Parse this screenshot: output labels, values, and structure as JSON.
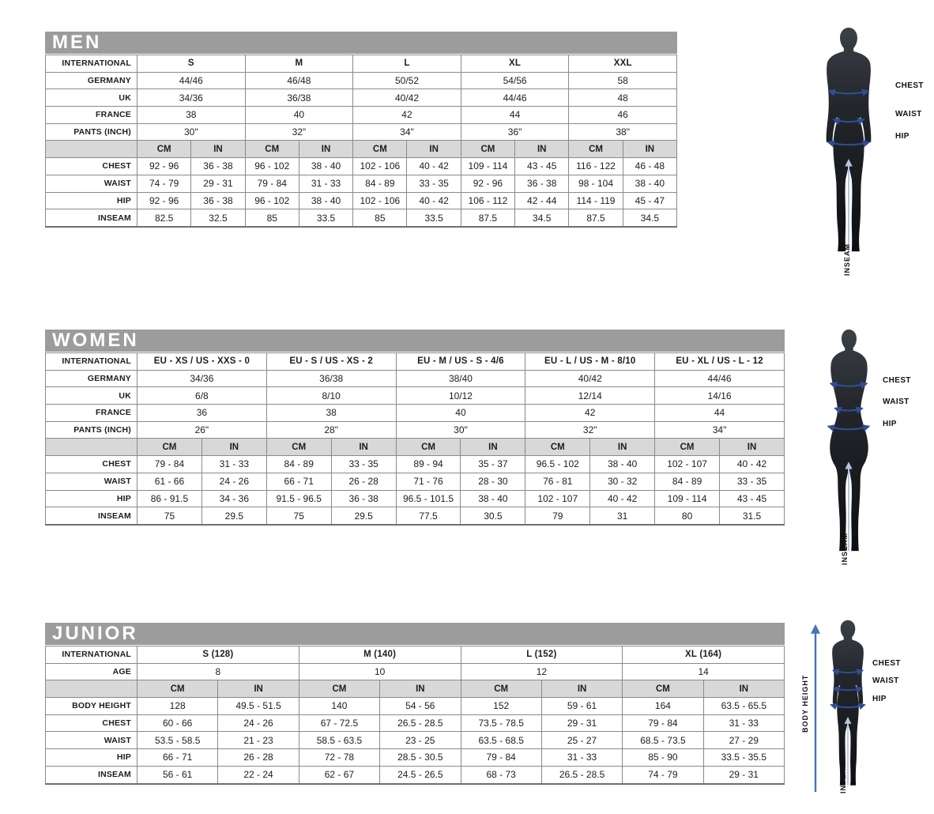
{
  "colors": {
    "header_bar": "#9c9c9c",
    "unit_row": "#d8d8d8",
    "measure_arrow": "#2e4f96",
    "inseam_line": "#b3c4e4",
    "body_height_arrow": "#4a72b8"
  },
  "men": {
    "title": "MEN",
    "table": {
      "label_col_width": 116,
      "info_rows": [
        {
          "label": "INTERNATIONAL",
          "values": [
            "S",
            "M",
            "L",
            "XL",
            "XXL"
          ]
        },
        {
          "label": "GERMANY",
          "values": [
            "44/46",
            "46/48",
            "50/52",
            "54/56",
            "58"
          ]
        },
        {
          "label": "UK",
          "values": [
            "34/36",
            "36/38",
            "40/42",
            "44/46",
            "48"
          ]
        },
        {
          "label": "FRANCE",
          "values": [
            "38",
            "40",
            "42",
            "44",
            "46"
          ]
        },
        {
          "label": "PANTS (INCH)",
          "values": [
            "30\"",
            "32\"",
            "34\"",
            "36\"",
            "38\""
          ]
        }
      ],
      "unit_row": [
        "CM",
        "IN"
      ],
      "measure_rows": [
        {
          "label": "CHEST",
          "values": [
            [
              "92 - 96",
              "36 - 38"
            ],
            [
              "96 - 102",
              "38 - 40"
            ],
            [
              "102 - 106",
              "40 - 42"
            ],
            [
              "109 - 114",
              "43 - 45"
            ],
            [
              "116 - 122",
              "46 - 48"
            ]
          ]
        },
        {
          "label": "WAIST",
          "values": [
            [
              "74 - 79",
              "29 - 31"
            ],
            [
              "79 - 84",
              "31 - 33"
            ],
            [
              "84 - 89",
              "33 - 35"
            ],
            [
              "92 - 96",
              "36 - 38"
            ],
            [
              "98 - 104",
              "38 - 40"
            ]
          ]
        },
        {
          "label": "HIP",
          "values": [
            [
              "92 - 96",
              "36 - 38"
            ],
            [
              "96 - 102",
              "38 - 40"
            ],
            [
              "102 - 106",
              "40 - 42"
            ],
            [
              "106 - 112",
              "42 - 44"
            ],
            [
              "114 - 119",
              "45 - 47"
            ]
          ]
        },
        {
          "label": "INSEAM",
          "values": [
            [
              "82.5",
              "32.5"
            ],
            [
              "85",
              "33.5"
            ],
            [
              "85",
              "33.5"
            ],
            [
              "87.5",
              "34.5"
            ],
            [
              "87.5",
              "34.5"
            ]
          ]
        }
      ]
    },
    "figure": {
      "chest": "CHEST",
      "waist": "WAIST",
      "hip": "HIP",
      "inseam": "INSEAM"
    }
  },
  "women": {
    "title": "WOMEN",
    "table": {
      "label_col_width": 116,
      "info_rows": [
        {
          "label": "INTERNATIONAL",
          "values": [
            "EU - XS / US - XXS - 0",
            "EU - S / US - XS - 2",
            "EU - M / US - S - 4/6",
            "EU - L / US - M - 8/10",
            "EU - XL / US - L - 12"
          ]
        },
        {
          "label": "GERMANY",
          "values": [
            "34/36",
            "36/38",
            "38/40",
            "40/42",
            "44/46"
          ]
        },
        {
          "label": "UK",
          "values": [
            "6/8",
            "8/10",
            "10/12",
            "12/14",
            "14/16"
          ]
        },
        {
          "label": "FRANCE",
          "values": [
            "36",
            "38",
            "40",
            "42",
            "44"
          ]
        },
        {
          "label": "PANTS (INCH)",
          "values": [
            "26\"",
            "28\"",
            "30\"",
            "32\"",
            "34\""
          ]
        }
      ],
      "unit_row": [
        "CM",
        "IN"
      ],
      "measure_rows": [
        {
          "label": "CHEST",
          "values": [
            [
              "79 - 84",
              "31 - 33"
            ],
            [
              "84 - 89",
              "33 - 35"
            ],
            [
              "89 - 94",
              "35 - 37"
            ],
            [
              "96.5 - 102",
              "38 - 40"
            ],
            [
              "102 - 107",
              "40 - 42"
            ]
          ]
        },
        {
          "label": "WAIST",
          "values": [
            [
              "61 - 66",
              "24 - 26"
            ],
            [
              "66 - 71",
              "26 - 28"
            ],
            [
              "71 - 76",
              "28 - 30"
            ],
            [
              "76 - 81",
              "30 - 32"
            ],
            [
              "84 - 89",
              "33 - 35"
            ]
          ]
        },
        {
          "label": "HIP",
          "values": [
            [
              "86 - 91.5",
              "34 - 36"
            ],
            [
              "91.5 - 96.5",
              "36 - 38"
            ],
            [
              "96.5 - 101.5",
              "38 - 40"
            ],
            [
              "102 - 107",
              "40 - 42"
            ],
            [
              "109 - 114",
              "43 - 45"
            ]
          ]
        },
        {
          "label": "INSEAM",
          "values": [
            [
              "75",
              "29.5"
            ],
            [
              "75",
              "29.5"
            ],
            [
              "77.5",
              "30.5"
            ],
            [
              "79",
              "31"
            ],
            [
              "80",
              "31.5"
            ]
          ]
        }
      ]
    },
    "figure": {
      "chest": "CHEST",
      "waist": "WAIST",
      "hip": "HIP",
      "inseam": "INSEAM"
    }
  },
  "junior": {
    "title": "JUNIOR",
    "table": {
      "label_col_width": 116,
      "info_rows": [
        {
          "label": "INTERNATIONAL",
          "values": [
            "S (128)",
            "M (140)",
            "L (152)",
            "XL (164)"
          ]
        },
        {
          "label": "AGE",
          "values": [
            "8",
            "10",
            "12",
            "14"
          ]
        }
      ],
      "unit_row": [
        "CM",
        "IN"
      ],
      "measure_rows": [
        {
          "label": "BODY HEIGHT",
          "values": [
            [
              "128",
              "49.5 - 51.5"
            ],
            [
              "140",
              "54 - 56"
            ],
            [
              "152",
              "59 - 61"
            ],
            [
              "164",
              "63.5 - 65.5"
            ]
          ]
        },
        {
          "label": "CHEST",
          "values": [
            [
              "60 - 66",
              "24 - 26"
            ],
            [
              "67 - 72.5",
              "26.5 - 28.5"
            ],
            [
              "73.5 - 78.5",
              "29 - 31"
            ],
            [
              "79 - 84",
              "31 - 33"
            ]
          ]
        },
        {
          "label": "WAIST",
          "values": [
            [
              "53.5 - 58.5",
              "21 - 23"
            ],
            [
              "58.5 - 63.5",
              "23 - 25"
            ],
            [
              "63.5 - 68.5",
              "25 - 27"
            ],
            [
              "68.5 - 73.5",
              "27 - 29"
            ]
          ]
        },
        {
          "label": "HIP",
          "values": [
            [
              "66 - 71",
              "26 - 28"
            ],
            [
              "72 - 78",
              "28.5 - 30.5"
            ],
            [
              "79 - 84",
              "31 - 33"
            ],
            [
              "85 - 90",
              "33.5 - 35.5"
            ]
          ]
        },
        {
          "label": "INSEAM",
          "values": [
            [
              "56 - 61",
              "22 - 24"
            ],
            [
              "62 - 67",
              "24.5 - 26.5"
            ],
            [
              "68 - 73",
              "26.5 - 28.5"
            ],
            [
              "74 - 79",
              "29 - 31"
            ]
          ]
        }
      ]
    },
    "figure": {
      "chest": "CHEST",
      "waist": "WAIST",
      "hip": "HIP",
      "inseam": "INSEAM",
      "body_height": "BODY HEIGHT"
    }
  }
}
